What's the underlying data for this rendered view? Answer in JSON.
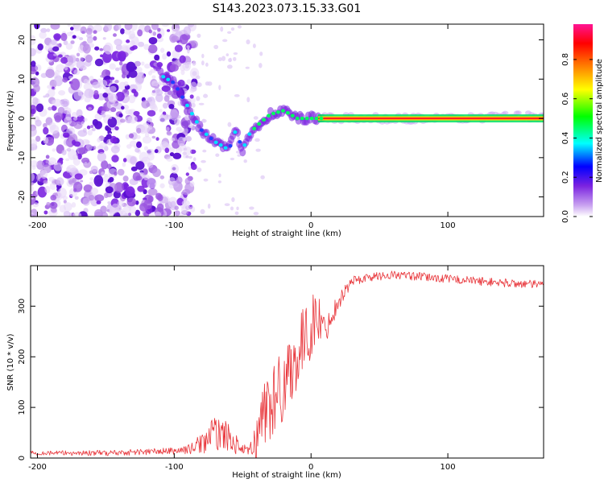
{
  "title": "S143.2023.073.15.33.G01",
  "chart_data": [
    {
      "type": "heatmap",
      "xlabel": "Height of straight line (km)",
      "ylabel": "Frequency (Hz)",
      "xlim": [
        -205,
        170
      ],
      "ylim": [
        -25,
        24
      ],
      "x_ticks": [
        -200,
        -100,
        0,
        100
      ],
      "y_ticks": [
        20,
        10,
        0,
        -10,
        -20
      ],
      "colorbar": {
        "label": "Normalized spectral amplitude",
        "range": [
          0,
          0.98
        ],
        "ticks": [
          "0.0",
          "0.2",
          "0.4",
          "0.6",
          "0.8"
        ],
        "colormap": [
          "#ffffff",
          "#8a2be2",
          "#0000ff",
          "#00ffff",
          "#00ff00",
          "#ffff00",
          "#ff8000",
          "#ff0000",
          "#ff00aa"
        ]
      },
      "ridge": {
        "description_points_x": [
          -110,
          -100,
          -90,
          -80,
          -70,
          -60,
          -55,
          -50,
          -45,
          -40,
          -30,
          -20,
          -10,
          0,
          10,
          50,
          100,
          150,
          170
        ],
        "description_points_y": [
          11,
          9,
          3,
          -3,
          -6,
          -8,
          -3,
          -8,
          -4,
          -2,
          1,
          2,
          0,
          0,
          0,
          0,
          0,
          0.5,
          0.5
        ]
      },
      "noise_region_x": [
        -205,
        -100
      ]
    },
    {
      "type": "line",
      "xlabel": "Height of straight line (km)",
      "ylabel": "SNR (10 * v/v)",
      "xlim": [
        -205,
        170
      ],
      "ylim": [
        0,
        380
      ],
      "x_ticks": [
        -200,
        -100,
        0,
        100
      ],
      "y_ticks": [
        0,
        100,
        200,
        300
      ],
      "line_color": "#e8363b",
      "envelope": {
        "x": [
          -205,
          -150,
          -100,
          -88,
          -80,
          -72,
          -65,
          -58,
          -52,
          -46,
          -40,
          -35,
          -30,
          -25,
          -20,
          -15,
          -10,
          -5,
          0,
          5,
          10,
          20,
          30,
          45,
          60,
          80,
          100,
          120,
          140,
          170
        ],
        "baseline": [
          10,
          10,
          14,
          18,
          30,
          45,
          50,
          35,
          20,
          12,
          30,
          90,
          110,
          120,
          150,
          180,
          200,
          230,
          260,
          280,
          250,
          310,
          350,
          358,
          362,
          358,
          354,
          350,
          346,
          342
        ],
        "spread": [
          6,
          8,
          10,
          14,
          30,
          50,
          45,
          35,
          20,
          12,
          60,
          100,
          120,
          110,
          110,
          100,
          100,
          100,
          90,
          80,
          40,
          25,
          15,
          12,
          12,
          12,
          12,
          12,
          12,
          12
        ]
      }
    }
  ]
}
